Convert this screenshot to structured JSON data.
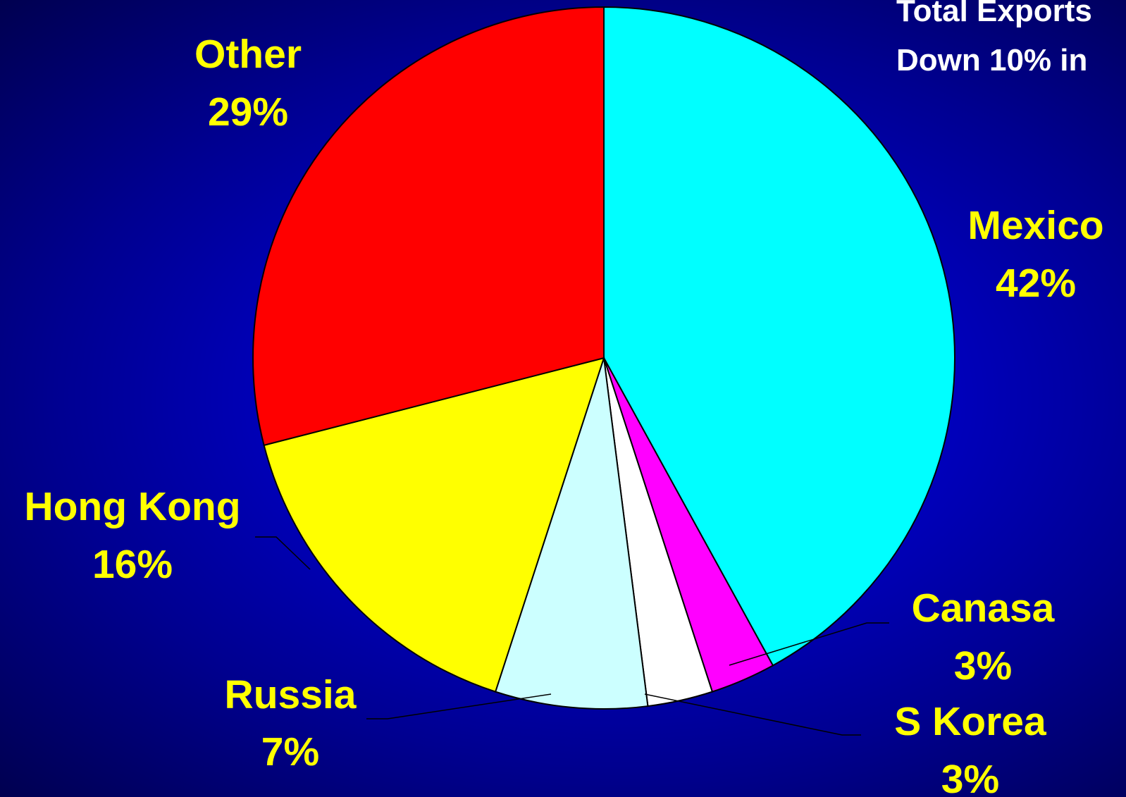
{
  "notes": {
    "line1": "Total Exports",
    "line2": "Down 10% in"
  },
  "chart_data": {
    "type": "pie",
    "title": "",
    "start": "top",
    "direction": "clockwise",
    "slices": [
      {
        "label": "Mexico",
        "value": 42,
        "display": "42%",
        "color": "#00ffff"
      },
      {
        "label": "Canasa",
        "value": 3,
        "display": "3%",
        "color": "#ff00ff"
      },
      {
        "label": "S Korea",
        "value": 3,
        "display": "3%",
        "color": "#ffffff"
      },
      {
        "label": "Russia",
        "value": 7,
        "display": "7%",
        "color": "#ccffff"
      },
      {
        "label": "Hong Kong",
        "value": 16,
        "display": "16%",
        "color": "#ffff00"
      },
      {
        "label": "Other",
        "value": 29,
        "display": "29%",
        "color": "#ff0000"
      }
    ],
    "label_color": "#ffff00"
  }
}
